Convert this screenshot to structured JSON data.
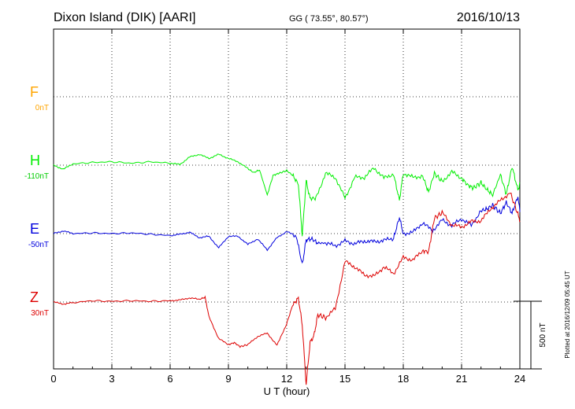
{
  "header": {
    "station": "Dixon Island (DIK)  [AARI]",
    "coords": "GG ( 73.55°,  80.57°)",
    "date": "2016/10/13"
  },
  "axis": {
    "xlabel": "U T (hour)",
    "xlim": [
      0,
      24
    ],
    "ticks": [
      "0",
      "3",
      "6",
      "9",
      "12",
      "15",
      "18",
      "21",
      "24"
    ],
    "scale_label": "500 nT",
    "plotted_label": "Plotted at 2016/12/09 05:45 UT"
  },
  "colors": {
    "F": "#ffa500",
    "H": "#00ee00",
    "E": "#0000dd",
    "Z": "#dd0000",
    "grid": "#000000"
  },
  "chart_data": {
    "type": "line",
    "title": "Dixon Island (DIK)  [AARI]",
    "xlabel": "U T (hour)",
    "xlim": [
      0,
      24
    ],
    "scale_bar_nT": 500,
    "grid": true,
    "series": [
      {
        "name": "F",
        "baseline": "0nT",
        "x": [],
        "y": []
      },
      {
        "name": "H",
        "baseline": "-110nT",
        "x": [
          0,
          0.5,
          1,
          2,
          3,
          4,
          5,
          6,
          6.5,
          7,
          7.5,
          8,
          8.5,
          9,
          9.5,
          10,
          10.3,
          10.6,
          11,
          11.3,
          11.6,
          12,
          12.3,
          12.6,
          12.8,
          13,
          13.2,
          13.5,
          14,
          14.5,
          15,
          15.5,
          16,
          16.5,
          17,
          17.5,
          17.8,
          18,
          18.5,
          19,
          19.3,
          19.6,
          20,
          20.5,
          21,
          21.3,
          21.6,
          22,
          22.3,
          22.6,
          23,
          23.3,
          23.6,
          23.9,
          24
        ],
        "y": [
          0,
          -30,
          10,
          20,
          25,
          15,
          25,
          15,
          5,
          60,
          80,
          50,
          80,
          50,
          25,
          -25,
          -55,
          -35,
          -220,
          -75,
          -60,
          -40,
          -75,
          -140,
          -520,
          -115,
          -245,
          -245,
          -60,
          -90,
          -245,
          -90,
          -90,
          -20,
          -95,
          -65,
          -260,
          -60,
          -90,
          -80,
          -200,
          -60,
          -120,
          -50,
          -95,
          -145,
          -170,
          -130,
          -180,
          -220,
          -70,
          -215,
          -10,
          -185,
          -130
        ]
      },
      {
        "name": "E",
        "baseline": "-50nT",
        "x": [
          0,
          0.5,
          1,
          2,
          3,
          4,
          5,
          6,
          6.5,
          7,
          7.5,
          8,
          8.5,
          9,
          9.5,
          10,
          10.5,
          11,
          11.5,
          12,
          12.5,
          12.8,
          13,
          13.3,
          13.6,
          14,
          14.5,
          15,
          15.5,
          16,
          16.5,
          17,
          17.5,
          17.8,
          18,
          18.5,
          19,
          19.5,
          20,
          20.5,
          21,
          21.5,
          22,
          22.3,
          22.6,
          23,
          23.3,
          23.6,
          23.9,
          24
        ],
        "y": [
          0,
          20,
          0,
          5,
          0,
          5,
          -5,
          -15,
          -5,
          10,
          -30,
          -20,
          -105,
          -20,
          -20,
          -80,
          -40,
          -120,
          -30,
          15,
          -20,
          -230,
          -45,
          -40,
          -70,
          -70,
          -90,
          -55,
          -75,
          -55,
          -60,
          -50,
          -35,
          120,
          0,
          10,
          80,
          20,
          100,
          60,
          110,
          60,
          170,
          180,
          210,
          150,
          230,
          150,
          275,
          160
        ]
      },
      {
        "name": "Z",
        "baseline": "30nT",
        "x": [
          0,
          0.5,
          1,
          2,
          3,
          4,
          5,
          6,
          6.5,
          7,
          7.5,
          7.8,
          8,
          8.5,
          9,
          9.3,
          9.6,
          10,
          10.5,
          11,
          11.5,
          12,
          12.3,
          12.6,
          12.8,
          13,
          13.2,
          13.4,
          13.6,
          14,
          14.5,
          15,
          15.5,
          16,
          16.5,
          17,
          17.5,
          18,
          18.5,
          19,
          19.3,
          19.6,
          20,
          20.5,
          21,
          21.5,
          22,
          22.5,
          23,
          23.5,
          23.9,
          24
        ],
        "y": [
          0,
          -15,
          -5,
          10,
          5,
          10,
          5,
          10,
          15,
          30,
          20,
          35,
          -110,
          -270,
          -315,
          -300,
          -330,
          -315,
          -255,
          -230,
          -320,
          -160,
          -25,
          30,
          -170,
          -610,
          -300,
          -250,
          -95,
          -115,
          -50,
          300,
          260,
          200,
          190,
          260,
          210,
          330,
          310,
          380,
          370,
          620,
          660,
          570,
          555,
          595,
          600,
          690,
          750,
          810,
          650,
          600
        ]
      }
    ]
  }
}
